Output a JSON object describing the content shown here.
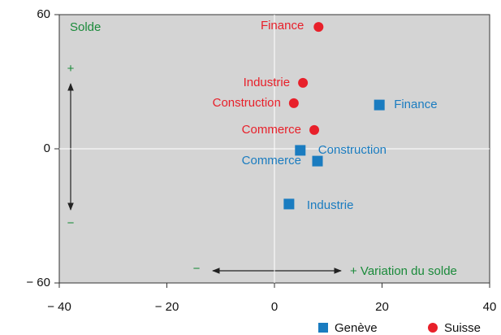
{
  "chart_data": {
    "type": "scatter",
    "xlim": [
      -40,
      40
    ],
    "ylim": [
      -60,
      60
    ],
    "xticks": [
      {
        "value": -40,
        "label": "− 40"
      },
      {
        "value": -20,
        "label": "− 20"
      },
      0,
      20,
      40
    ],
    "yticks": [
      60,
      0,
      {
        "value": -60,
        "label": "− 60"
      }
    ],
    "series": [
      {
        "name": "Genève",
        "color": "#1a7cc0",
        "marker": "square",
        "labels": [
          "Finance",
          "Construction",
          "Commerce",
          "Industrie"
        ],
        "x": [
          19.5,
          4.8,
          8,
          2.7
        ],
        "values": [
          19.6,
          -0.7,
          -5.5,
          -24.7
        ]
      },
      {
        "name": "Suisse",
        "color": "#e8202a",
        "marker": "circle",
        "labels": [
          "Finance",
          "Industrie",
          "Construction",
          "Commerce"
        ],
        "x": [
          8.2,
          5.3,
          3.6,
          7.4
        ],
        "values": [
          54.5,
          29.5,
          20.4,
          8.4
        ]
      }
    ],
    "annotations": [
      "Solde",
      "+",
      "−",
      "−",
      "+ Variation du solde"
    ]
  }
}
